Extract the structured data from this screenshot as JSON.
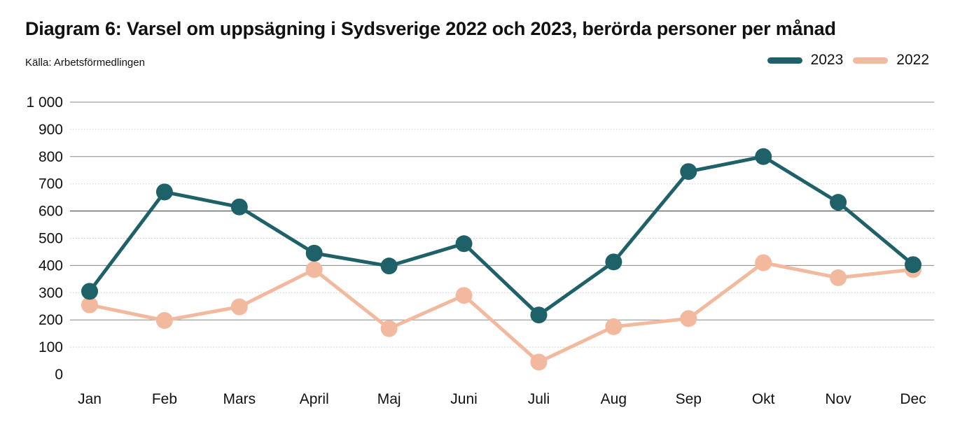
{
  "title": "Diagram 6: Varsel om uppsägning i Sydsverige 2022 och 2023, berörda personer per månad",
  "source": "Källa: Arbetsförmedlingen",
  "chart_data": {
    "type": "line",
    "categories": [
      "Jan",
      "Feb",
      "Mars",
      "April",
      "Maj",
      "Juni",
      "Juli",
      "Aug",
      "Sep",
      "Okt",
      "Nov",
      "Dec"
    ],
    "series": [
      {
        "name": "2023",
        "color": "#1f6168",
        "values": [
          305,
          670,
          615,
          445,
          398,
          480,
          218,
          413,
          745,
          800,
          632,
          403
        ]
      },
      {
        "name": "2022",
        "color": "#f2b99e",
        "values": [
          255,
          198,
          248,
          385,
          168,
          290,
          45,
          175,
          205,
          410,
          355,
          385
        ]
      }
    ],
    "ylim": [
      0,
      1000
    ],
    "yticks": [
      "0",
      "100",
      "200",
      "300",
      "400",
      "500",
      "600",
      "700",
      "800",
      "900",
      "1 000"
    ],
    "major_gridlines": [
      200,
      400,
      600,
      800,
      1000
    ],
    "minor_gridlines": [
      100,
      300,
      500,
      700,
      900
    ],
    "grid": true,
    "legend_position": "top-right",
    "xlabel": "",
    "ylabel": ""
  }
}
